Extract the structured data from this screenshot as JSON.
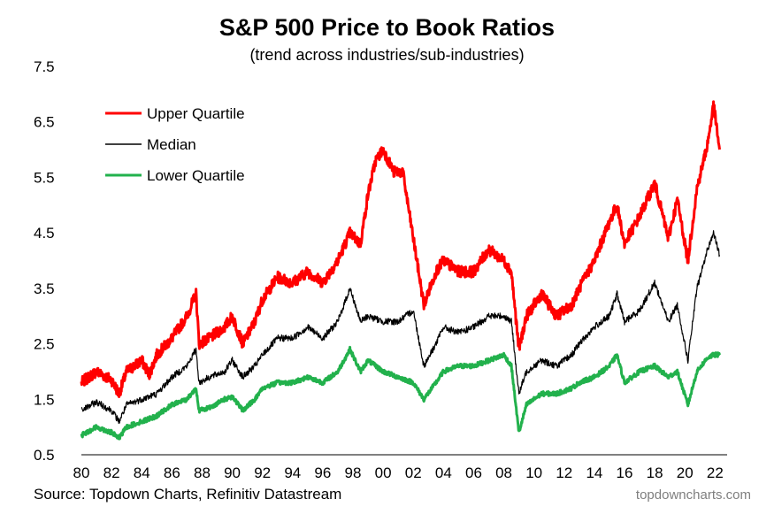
{
  "title": "S&P 500 Price to Book Ratios",
  "subtitle": "(trend across industries/sub-industries)",
  "source": "Source: Topdown Charts, Refinitiv Datastream",
  "watermark": "topdowncharts.com",
  "chart_data": {
    "type": "line",
    "ylim": [
      0.5,
      7.5
    ],
    "yticks": [
      "7.5",
      "6.5",
      "5.5",
      "4.5",
      "3.5",
      "2.5",
      "1.5",
      "0.5"
    ],
    "xlim": [
      1980,
      2022.8
    ],
    "xticks": [
      "80",
      "82",
      "84",
      "86",
      "88",
      "90",
      "92",
      "94",
      "96",
      "98",
      "00",
      "02",
      "04",
      "06",
      "08",
      "10",
      "12",
      "14",
      "16",
      "18",
      "20",
      "22"
    ],
    "grid": false,
    "legend_position": "top-left",
    "series": [
      {
        "name": "Upper Quartile",
        "color": "#ff0000",
        "points": [
          [
            1980,
            1.8
          ],
          [
            1981,
            2.0
          ],
          [
            1982,
            1.85
          ],
          [
            1982.5,
            1.6
          ],
          [
            1983,
            2.0
          ],
          [
            1984,
            2.2
          ],
          [
            1984.5,
            1.95
          ],
          [
            1985,
            2.3
          ],
          [
            1986,
            2.6
          ],
          [
            1987,
            3.0
          ],
          [
            1987.6,
            3.4
          ],
          [
            1987.8,
            2.5
          ],
          [
            1988.5,
            2.6
          ],
          [
            1989.5,
            2.8
          ],
          [
            1990,
            3.0
          ],
          [
            1990.7,
            2.5
          ],
          [
            1991.5,
            2.9
          ],
          [
            1992,
            3.3
          ],
          [
            1993,
            3.7
          ],
          [
            1994,
            3.6
          ],
          [
            1995,
            3.8
          ],
          [
            1996,
            3.6
          ],
          [
            1997,
            4.0
          ],
          [
            1997.8,
            4.5
          ],
          [
            1998.5,
            4.3
          ],
          [
            1999,
            5.2
          ],
          [
            1999.5,
            5.8
          ],
          [
            2000,
            6.0
          ],
          [
            2000.7,
            5.6
          ],
          [
            2001.3,
            5.6
          ],
          [
            2002,
            4.4
          ],
          [
            2002.7,
            3.2
          ],
          [
            2003.5,
            3.8
          ],
          [
            2004,
            4.0
          ],
          [
            2005,
            3.8
          ],
          [
            2006,
            3.8
          ],
          [
            2007,
            4.2
          ],
          [
            2008,
            4.0
          ],
          [
            2008.5,
            3.8
          ],
          [
            2009,
            2.4
          ],
          [
            2009.5,
            3.0
          ],
          [
            2010.5,
            3.4
          ],
          [
            2011.5,
            3.0
          ],
          [
            2012.5,
            3.2
          ],
          [
            2013,
            3.5
          ],
          [
            2014,
            4.0
          ],
          [
            2015,
            4.7
          ],
          [
            2015.5,
            5.0
          ],
          [
            2016,
            4.3
          ],
          [
            2017,
            4.8
          ],
          [
            2018,
            5.4
          ],
          [
            2018.9,
            4.4
          ],
          [
            2019.5,
            5.1
          ],
          [
            2020.2,
            4.0
          ],
          [
            2020.8,
            5.3
          ],
          [
            2021.5,
            6.1
          ],
          [
            2021.9,
            6.8
          ],
          [
            2022.3,
            6.0
          ]
        ]
      },
      {
        "name": "Median",
        "color": "#000000",
        "points": [
          [
            1980,
            1.3
          ],
          [
            1981,
            1.45
          ],
          [
            1982,
            1.3
          ],
          [
            1982.5,
            1.1
          ],
          [
            1983,
            1.4
          ],
          [
            1984,
            1.5
          ],
          [
            1985,
            1.6
          ],
          [
            1986,
            1.9
          ],
          [
            1987,
            2.1
          ],
          [
            1987.6,
            2.4
          ],
          [
            1987.8,
            1.8
          ],
          [
            1988.5,
            1.9
          ],
          [
            1989.5,
            2.0
          ],
          [
            1990,
            2.2
          ],
          [
            1990.7,
            1.9
          ],
          [
            1991.5,
            2.1
          ],
          [
            1992,
            2.3
          ],
          [
            1993,
            2.6
          ],
          [
            1994,
            2.6
          ],
          [
            1995,
            2.8
          ],
          [
            1996,
            2.6
          ],
          [
            1997,
            2.9
          ],
          [
            1997.8,
            3.5
          ],
          [
            1998.5,
            2.9
          ],
          [
            1999,
            3.0
          ],
          [
            2000,
            2.9
          ],
          [
            2001,
            2.9
          ],
          [
            2002,
            3.1
          ],
          [
            2002.7,
            2.1
          ],
          [
            2003.5,
            2.5
          ],
          [
            2004,
            2.8
          ],
          [
            2005,
            2.7
          ],
          [
            2006,
            2.8
          ],
          [
            2007,
            3.0
          ],
          [
            2008,
            3.0
          ],
          [
            2008.5,
            2.9
          ],
          [
            2009,
            1.6
          ],
          [
            2009.5,
            2.0
          ],
          [
            2010.5,
            2.2
          ],
          [
            2011.5,
            2.1
          ],
          [
            2012.5,
            2.3
          ],
          [
            2013,
            2.5
          ],
          [
            2014,
            2.8
          ],
          [
            2015,
            3.0
          ],
          [
            2015.5,
            3.4
          ],
          [
            2016,
            2.9
          ],
          [
            2017,
            3.1
          ],
          [
            2018,
            3.6
          ],
          [
            2018.9,
            2.9
          ],
          [
            2019.5,
            3.2
          ],
          [
            2020.2,
            2.2
          ],
          [
            2020.8,
            3.5
          ],
          [
            2021.5,
            4.2
          ],
          [
            2021.9,
            4.5
          ],
          [
            2022.3,
            4.1
          ]
        ]
      },
      {
        "name": "Lower Quartile",
        "color": "#22b14c",
        "points": [
          [
            1980,
            0.85
          ],
          [
            1981,
            1.0
          ],
          [
            1982,
            0.9
          ],
          [
            1982.5,
            0.8
          ],
          [
            1983,
            1.0
          ],
          [
            1984,
            1.1
          ],
          [
            1985,
            1.2
          ],
          [
            1986,
            1.4
          ],
          [
            1987,
            1.5
          ],
          [
            1987.6,
            1.7
          ],
          [
            1987.8,
            1.3
          ],
          [
            1988.5,
            1.35
          ],
          [
            1989.5,
            1.5
          ],
          [
            1990,
            1.55
          ],
          [
            1990.7,
            1.3
          ],
          [
            1991.5,
            1.5
          ],
          [
            1992,
            1.7
          ],
          [
            1993,
            1.8
          ],
          [
            1994,
            1.8
          ],
          [
            1995,
            1.9
          ],
          [
            1996,
            1.8
          ],
          [
            1997,
            2.0
          ],
          [
            1997.8,
            2.4
          ],
          [
            1998.5,
            2.0
          ],
          [
            1999,
            2.2
          ],
          [
            2000,
            2.0
          ],
          [
            2001,
            1.9
          ],
          [
            2002,
            1.8
          ],
          [
            2002.7,
            1.5
          ],
          [
            2003.5,
            1.8
          ],
          [
            2004,
            2.0
          ],
          [
            2005,
            2.1
          ],
          [
            2006,
            2.1
          ],
          [
            2007,
            2.2
          ],
          [
            2008,
            2.3
          ],
          [
            2008.5,
            2.1
          ],
          [
            2009,
            0.9
          ],
          [
            2009.5,
            1.4
          ],
          [
            2010.5,
            1.6
          ],
          [
            2011.5,
            1.6
          ],
          [
            2012.5,
            1.7
          ],
          [
            2013,
            1.8
          ],
          [
            2014,
            1.9
          ],
          [
            2015,
            2.1
          ],
          [
            2015.5,
            2.3
          ],
          [
            2016,
            1.8
          ],
          [
            2017,
            2.0
          ],
          [
            2018,
            2.1
          ],
          [
            2018.9,
            1.9
          ],
          [
            2019.5,
            2.0
          ],
          [
            2020.2,
            1.4
          ],
          [
            2020.8,
            2.0
          ],
          [
            2021.5,
            2.25
          ],
          [
            2021.9,
            2.3
          ],
          [
            2022.3,
            2.3
          ]
        ]
      }
    ]
  }
}
